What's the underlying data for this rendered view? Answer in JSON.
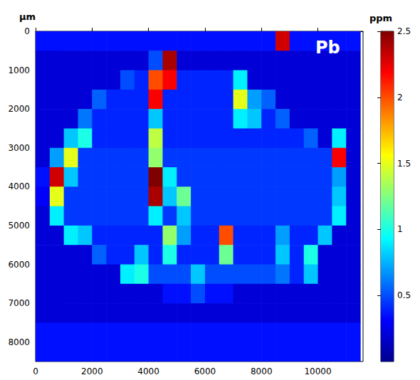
{
  "chart_data": {
    "type": "heatmap",
    "title": "Pb",
    "ylabel": "µm",
    "x": [
      250,
      750,
      1250,
      1750,
      2250,
      2750,
      3250,
      3750,
      4250,
      4750,
      5250,
      5750,
      6250,
      6750,
      7250,
      7750,
      8250,
      8750,
      9250,
      9750,
      10250,
      10750,
      11250
    ],
    "y": [
      250,
      750,
      1250,
      1750,
      2250,
      2750,
      3250,
      3750,
      4250,
      4750,
      5250,
      5750,
      6250,
      6750,
      7250,
      7750,
      8250
    ],
    "xlim": [
      0,
      11600
    ],
    "ylim": [
      0,
      8500
    ],
    "xticks": [
      0,
      2000,
      4000,
      6000,
      8000,
      10000
    ],
    "yticks": [
      0,
      1000,
      2000,
      3000,
      4000,
      5000,
      6000,
      7000,
      8000
    ],
    "values": [
      [
        0.35,
        0.35,
        0.35,
        0.35,
        0.35,
        0.35,
        0.35,
        0.35,
        0.35,
        0.35,
        0.35,
        0.35,
        0.35,
        0.35,
        0.35,
        0.35,
        0.35,
        2.3,
        0.35,
        0.35,
        0.35,
        0.35,
        0.35
      ],
      [
        0.2,
        0.2,
        0.2,
        0.2,
        0.2,
        0.2,
        0.2,
        0.2,
        0.5,
        2.4,
        0.2,
        0.2,
        0.2,
        0.2,
        0.2,
        0.2,
        0.2,
        0.2,
        0.2,
        0.2,
        0.2,
        0.2,
        0.2
      ],
      [
        0.2,
        0.2,
        0.2,
        0.2,
        0.2,
        0.2,
        0.5,
        0.4,
        2.0,
        2.2,
        0.4,
        0.4,
        0.4,
        0.4,
        0.9,
        0.2,
        0.2,
        0.2,
        0.2,
        0.2,
        0.2,
        0.2,
        0.2
      ],
      [
        0.2,
        0.2,
        0.2,
        0.2,
        0.55,
        0.4,
        0.4,
        0.4,
        2.2,
        0.4,
        0.4,
        0.4,
        0.4,
        0.4,
        1.5,
        0.7,
        0.55,
        0.2,
        0.2,
        0.2,
        0.2,
        0.2,
        0.2
      ],
      [
        0.2,
        0.2,
        0.2,
        0.6,
        0.4,
        0.4,
        0.4,
        0.4,
        0.8,
        0.4,
        0.4,
        0.4,
        0.4,
        0.4,
        0.9,
        0.8,
        0.4,
        0.55,
        0.2,
        0.2,
        0.2,
        0.2,
        0.2
      ],
      [
        0.2,
        0.2,
        0.8,
        1.0,
        0.4,
        0.4,
        0.4,
        0.4,
        1.4,
        0.4,
        0.4,
        0.4,
        0.4,
        0.4,
        0.4,
        0.4,
        0.4,
        0.4,
        0.4,
        0.55,
        0.2,
        0.9,
        0.2
      ],
      [
        0.2,
        0.7,
        1.5,
        0.45,
        0.45,
        0.45,
        0.45,
        0.45,
        1.3,
        0.45,
        0.45,
        0.45,
        0.45,
        0.45,
        0.45,
        0.45,
        0.45,
        0.45,
        0.45,
        0.45,
        0.45,
        2.2,
        0.2
      ],
      [
        0.35,
        2.3,
        0.8,
        0.45,
        0.45,
        0.45,
        0.45,
        0.45,
        2.5,
        0.9,
        0.45,
        0.45,
        0.45,
        0.45,
        0.45,
        0.45,
        0.45,
        0.45,
        0.45,
        0.45,
        0.45,
        0.7,
        0.2
      ],
      [
        0.3,
        1.5,
        0.45,
        0.45,
        0.45,
        0.45,
        0.45,
        0.45,
        2.4,
        0.8,
        1.2,
        0.45,
        0.45,
        0.45,
        0.45,
        0.45,
        0.45,
        0.45,
        0.45,
        0.45,
        0.45,
        0.8,
        0.2
      ],
      [
        0.2,
        0.9,
        0.45,
        0.45,
        0.45,
        0.45,
        0.45,
        0.45,
        0.9,
        0.45,
        0.8,
        0.45,
        0.45,
        0.45,
        0.45,
        0.45,
        0.45,
        0.45,
        0.45,
        0.45,
        0.45,
        0.9,
        0.2
      ],
      [
        0.2,
        0.2,
        0.9,
        0.8,
        0.4,
        0.4,
        0.4,
        0.4,
        0.4,
        1.3,
        0.7,
        0.4,
        0.4,
        2.0,
        0.4,
        0.4,
        0.4,
        0.7,
        0.4,
        0.4,
        0.8,
        0.2,
        0.2
      ],
      [
        0.2,
        0.2,
        0.2,
        0.2,
        0.55,
        0.4,
        0.4,
        0.8,
        0.4,
        1.0,
        0.4,
        0.4,
        0.4,
        1.2,
        0.4,
        0.4,
        0.4,
        0.8,
        0.4,
        1.0,
        0.2,
        0.2,
        0.2
      ],
      [
        0.2,
        0.2,
        0.2,
        0.2,
        0.2,
        0.2,
        0.9,
        1.0,
        0.5,
        0.5,
        0.5,
        0.8,
        0.5,
        0.5,
        0.5,
        0.5,
        0.5,
        0.6,
        0.4,
        0.8,
        0.2,
        0.2,
        0.2
      ],
      [
        0.2,
        0.2,
        0.2,
        0.2,
        0.2,
        0.2,
        0.2,
        0.2,
        0.2,
        0.35,
        0.35,
        0.5,
        0.35,
        0.35,
        0.2,
        0.2,
        0.2,
        0.2,
        0.2,
        0.2,
        0.2,
        0.2,
        0.2
      ],
      [
        0.2,
        0.2,
        0.2,
        0.2,
        0.2,
        0.2,
        0.2,
        0.2,
        0.2,
        0.2,
        0.2,
        0.2,
        0.2,
        0.2,
        0.2,
        0.2,
        0.2,
        0.2,
        0.2,
        0.2,
        0.2,
        0.2,
        0.2
      ],
      [
        0.35,
        0.35,
        0.35,
        0.35,
        0.35,
        0.35,
        0.35,
        0.35,
        0.35,
        0.35,
        0.35,
        0.35,
        0.35,
        0.35,
        0.35,
        0.35,
        0.35,
        0.35,
        0.35,
        0.35,
        0.35,
        0.35,
        0.35
      ],
      [
        0.35,
        0.35,
        0.35,
        0.35,
        0.35,
        0.35,
        0.35,
        0.35,
        0.35,
        0.35,
        0.35,
        0.35,
        0.35,
        0.35,
        0.35,
        0.35,
        0.35,
        0.35,
        0.35,
        0.35,
        0.35,
        0.35,
        0.35
      ]
    ],
    "colorbar": {
      "label": "ppm",
      "range": [
        0,
        2.5
      ],
      "ticks": [
        0.5,
        1,
        1.5,
        2,
        2.5
      ]
    }
  }
}
